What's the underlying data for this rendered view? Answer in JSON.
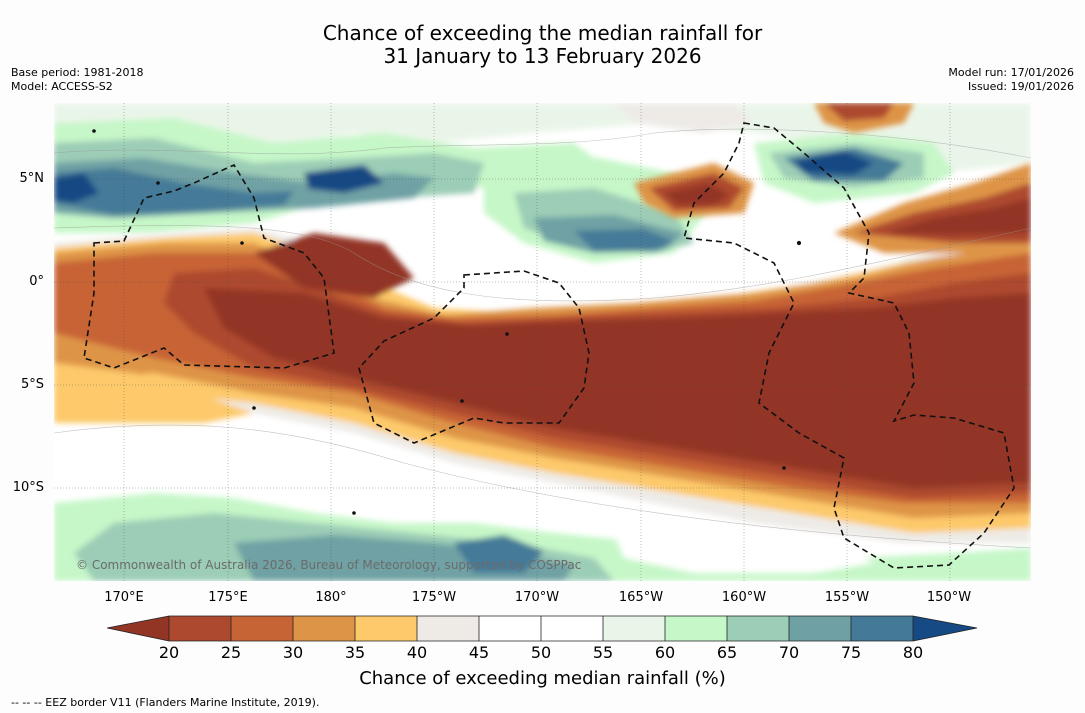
{
  "title": {
    "line1": "Chance of exceeding the median rainfall for",
    "line2": "31 January to 13 February 2026"
  },
  "meta": {
    "base_period": "Base period: 1981-2018",
    "model": "Model: ACCESS-S2",
    "model_run": "Model run: 17/01/2026",
    "issued": "Issued: 19/01/2026"
  },
  "map": {
    "lat_labels": [
      "5°N",
      "0°",
      "5°S",
      "10°S"
    ],
    "lon_labels": [
      "170°E",
      "175°E",
      "180°",
      "175°W",
      "170°W",
      "165°W",
      "160°W",
      "155°W",
      "150°W"
    ],
    "copyright": "© Commonwealth of Australia 2026, Bureau of Meteorology, supported by COSPPac",
    "zones": [
      {
        "name": "dry-core",
        "probability_range": "20%"
      },
      {
        "name": "near-median-band",
        "probability_range": "40-60%"
      },
      {
        "name": "wet-north-patches",
        "probability_range": "65-80%"
      }
    ]
  },
  "colorbar": {
    "ticks": [
      "20",
      "25",
      "30",
      "35",
      "40",
      "45",
      "50",
      "55",
      "60",
      "65",
      "70",
      "75",
      "80"
    ],
    "colors": {
      "c20": "#933525",
      "c20_25": "#ad492f",
      "c25_30": "#c76436",
      "c30_35": "#de9446",
      "c35_40": "#fdc96a",
      "c40_45": "#eeebe7",
      "c45_50": "#ffffff",
      "c50_55": "#ffffff",
      "c55_60": "#eaf5e9",
      "c60_65": "#c6f7c8",
      "c65_70": "#9ccdb6",
      "c70_75": "#6fa1a4",
      "c75_80": "#447a98",
      "c80": "#154a84"
    },
    "title": "Chance of exceeding median rainfall (%)"
  },
  "footer": {
    "eez_note": "--  --  -- EEZ border V11 (Flanders Marine Institute, 2019)."
  }
}
